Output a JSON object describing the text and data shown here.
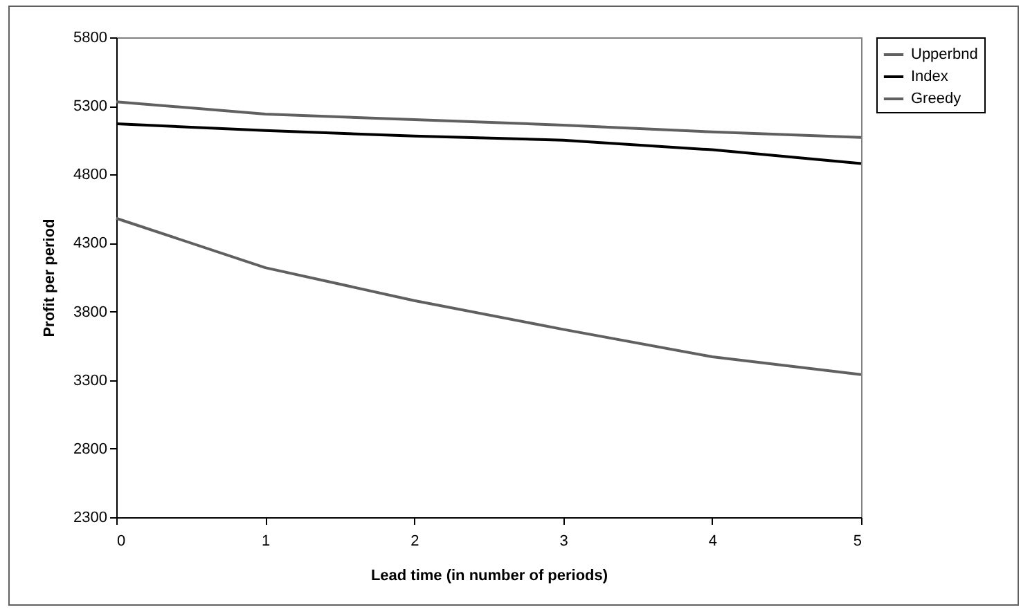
{
  "chart_data": {
    "type": "line",
    "xlabel": "Lead time (in number of periods)",
    "ylabel": "Profit per period",
    "x": [
      0,
      1,
      2,
      3,
      4,
      5
    ],
    "series": [
      {
        "name": "Upperbnd",
        "color": "#606060",
        "values": [
          5330,
          5240,
          5200,
          5160,
          5110,
          5070
        ]
      },
      {
        "name": "Index",
        "color": "#000000",
        "values": [
          5170,
          5120,
          5080,
          5050,
          4980,
          4880
        ]
      },
      {
        "name": "Greedy",
        "color": "#606060",
        "values": [
          4480,
          4120,
          3880,
          3670,
          3470,
          3340
        ]
      }
    ],
    "xlim": [
      0,
      5
    ],
    "xticks": [
      0,
      1,
      2,
      3,
      4,
      5
    ],
    "ylim": [
      2300,
      5800
    ],
    "yticks": [
      2300,
      2800,
      3300,
      3800,
      4300,
      4800,
      5300,
      5800
    ],
    "grid": false,
    "legend": "right",
    "marker": "none",
    "line_style": "solid"
  }
}
